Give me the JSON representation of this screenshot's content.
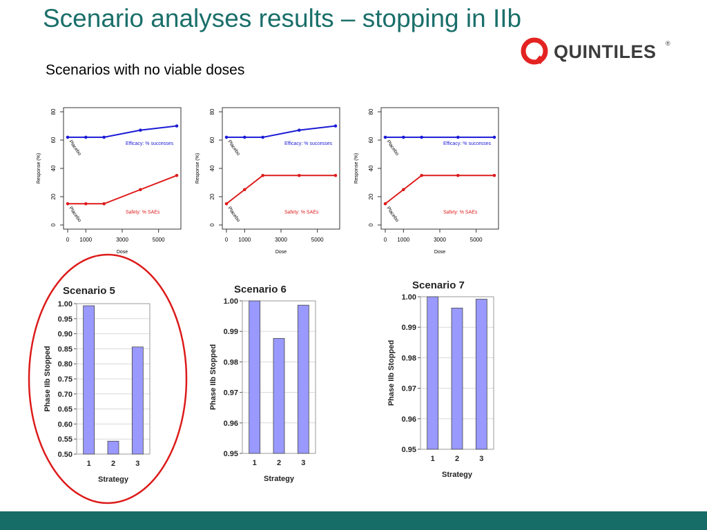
{
  "slide": {
    "title": "Scenario analyses results – stopping in IIb",
    "subtitle": "Scenarios with no viable doses",
    "logo_text": "QUINTILES",
    "logo_reg": "®"
  },
  "colors": {
    "title": "#1a6f6a",
    "efficacy": "#1a1ad6",
    "safety": "#dd1a1a",
    "bar_fill": "#9999ff",
    "highlight_circle": "#dd1a1a",
    "footer": "#166c66",
    "logo_ring": "#e32322"
  },
  "chart_data": [
    {
      "type": "line",
      "xlabel": "Dose",
      "ylabel": "Response (%)",
      "xlim": [
        0,
        6000
      ],
      "ylim": [
        0,
        80
      ],
      "xticks": [
        0,
        1000,
        3000,
        5000
      ],
      "yticks": [
        0,
        20,
        40,
        60,
        80
      ],
      "annotations": [
        "Placebo",
        "Placebo"
      ],
      "series": [
        {
          "name": "Efficacy: % successes",
          "x": [
            0,
            1000,
            2000,
            4000,
            6000
          ],
          "y": [
            62,
            62,
            62,
            67,
            70
          ]
        },
        {
          "name": "Safety: % SAEs",
          "x": [
            0,
            1000,
            2000,
            4000,
            6000
          ],
          "y": [
            15,
            15,
            15,
            25,
            35
          ]
        }
      ]
    },
    {
      "type": "line",
      "xlabel": "Dose",
      "ylabel": "Response (%)",
      "xlim": [
        0,
        6000
      ],
      "ylim": [
        0,
        80
      ],
      "xticks": [
        0,
        1000,
        3000,
        5000
      ],
      "yticks": [
        0,
        20,
        40,
        60,
        80
      ],
      "annotations": [
        "Placebo",
        "Placebo"
      ],
      "series": [
        {
          "name": "Efficacy: % successes",
          "x": [
            0,
            1000,
            2000,
            4000,
            6000
          ],
          "y": [
            62,
            62,
            62,
            67,
            70
          ]
        },
        {
          "name": "Safety: % SAEs",
          "x": [
            0,
            1000,
            2000,
            4000,
            6000
          ],
          "y": [
            15,
            25,
            35,
            35,
            35
          ]
        }
      ]
    },
    {
      "type": "line",
      "xlabel": "Dose",
      "ylabel": "Response (%)",
      "xlim": [
        0,
        6000
      ],
      "ylim": [
        0,
        80
      ],
      "xticks": [
        0,
        1000,
        3000,
        5000
      ],
      "yticks": [
        0,
        20,
        40,
        60,
        80
      ],
      "annotations": [
        "Placebo",
        "Placebo"
      ],
      "series": [
        {
          "name": "Efficacy: % successes",
          "x": [
            0,
            1000,
            2000,
            4000,
            6000
          ],
          "y": [
            62,
            62,
            62,
            62,
            62
          ]
        },
        {
          "name": "Safety: % SAEs",
          "x": [
            0,
            1000,
            2000,
            4000,
            6000
          ],
          "y": [
            15,
            25,
            35,
            35,
            35
          ]
        }
      ]
    },
    {
      "type": "bar",
      "title": "Scenario 5",
      "xlabel": "Strategy",
      "ylabel": "Phase IIb Stopped",
      "categories": [
        "1",
        "2",
        "3"
      ],
      "values": [
        0.993,
        0.543,
        0.856
      ],
      "ylim": [
        0.5,
        1.0
      ],
      "yticks": [
        "0.50",
        "0.55",
        "0.60",
        "0.65",
        "0.70",
        "0.75",
        "0.80",
        "0.85",
        "0.90",
        "0.95",
        "1.00"
      ],
      "highlighted": true
    },
    {
      "type": "bar",
      "title": "Scenario 6",
      "xlabel": "Strategy",
      "ylabel": "Phase IIb Stopped",
      "categories": [
        "1",
        "2",
        "3"
      ],
      "values": [
        1.0,
        0.9877,
        0.9986
      ],
      "ylim": [
        0.95,
        1.0
      ],
      "yticks": [
        "0.95",
        "0.96",
        "0.97",
        "0.98",
        "0.99",
        "1.00"
      ]
    },
    {
      "type": "bar",
      "title": "Scenario 7",
      "xlabel": "Strategy",
      "ylabel": "Phase IIb Stopped",
      "categories": [
        "1",
        "2",
        "3"
      ],
      "values": [
        1.0,
        0.9963,
        0.9992
      ],
      "ylim": [
        0.95,
        1.0
      ],
      "yticks": [
        "0.95",
        "0.96",
        "0.97",
        "0.98",
        "0.99",
        "1.00"
      ]
    }
  ]
}
